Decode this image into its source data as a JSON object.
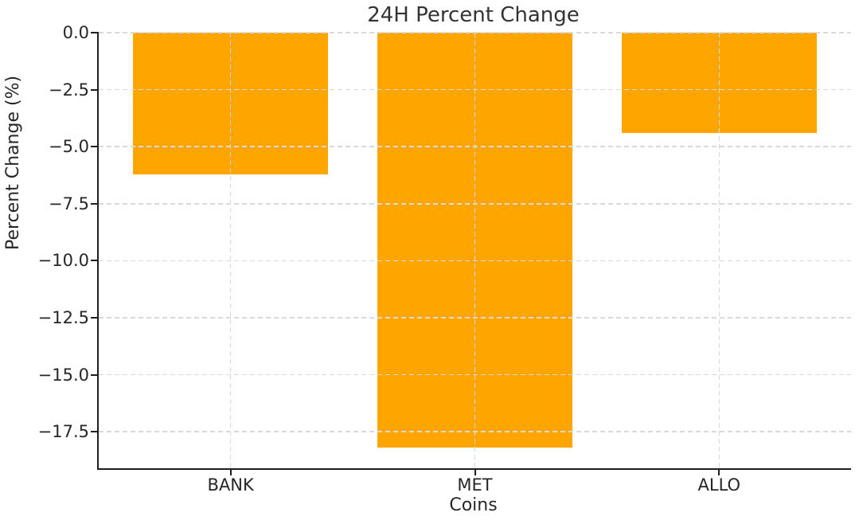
{
  "chart_data": {
    "type": "bar",
    "title": "24H Percent Change",
    "xlabel": "Coins",
    "ylabel": "Percent Change (%)",
    "categories": [
      "BANK",
      "MET",
      "ALLO"
    ],
    "values": [
      -6.2,
      -18.2,
      -4.4
    ],
    "yticks": [
      0,
      -2.5,
      -5,
      -7.5,
      -10,
      -12.5,
      -15,
      -17.5
    ],
    "ytick_labels": [
      "0.0",
      "−2.5",
      "−5.0",
      "−7.5",
      "−10.0",
      "−12.5",
      "−15.0",
      "−17.5"
    ],
    "ylim": [
      -19.1,
      0
    ],
    "grid": true,
    "legend": false,
    "bar_width_fraction": 0.8,
    "colors": {
      "bar": "#FFA500",
      "grid": "#D9D9D9",
      "spine": "#1F1F1F",
      "text": "#262626",
      "title": "#333333",
      "background": "#FFFFFF"
    }
  }
}
